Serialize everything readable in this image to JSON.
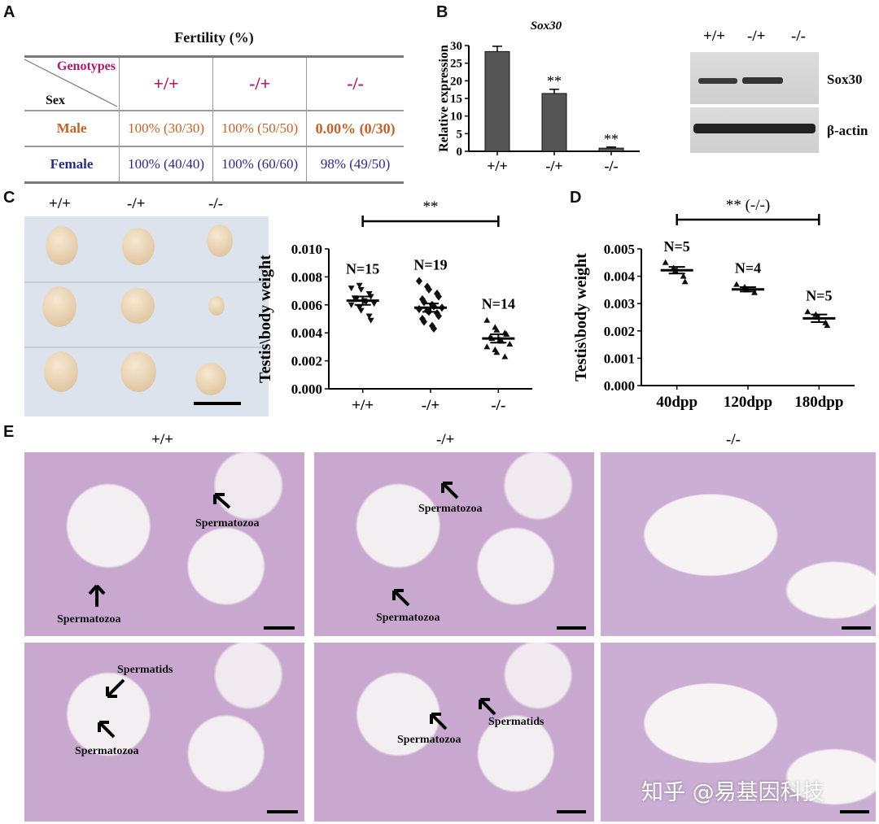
{
  "panels": {
    "a": "A",
    "b": "B",
    "c": "C",
    "d": "D",
    "e": "E"
  },
  "table": {
    "title": "Fertility (%)",
    "corner_top": "Genotypes",
    "corner_bottom": "Sex",
    "genotypes": [
      "+/+",
      "-/+",
      "-/-"
    ],
    "rows": [
      {
        "sex": "Male",
        "values": [
          "100% (30/30)",
          "100% (50/50)",
          "0.00% (0/30)"
        ]
      },
      {
        "sex": "Female",
        "values": [
          "100% (40/40)",
          "100% (60/60)",
          "98% (49/50)"
        ]
      }
    ],
    "colors": {
      "genotype": "#b01868",
      "male": "#c0622a",
      "female": "#2b2b80"
    }
  },
  "western": {
    "lanes": [
      "+/+",
      "-/+",
      "-/-"
    ],
    "band1": "Sox30",
    "band2": "β-actin"
  },
  "photo_c": {
    "columns": [
      "+/+",
      "-/+",
      "-/-"
    ]
  },
  "histology": {
    "columns": [
      "+/+",
      "-/+",
      "-/-"
    ],
    "labels": {
      "r1c1a": "Spermatozoa",
      "r1c1b": "Spermatozoa",
      "r1c2a": "Spermatozoa",
      "r1c2b": "Spermatozoa",
      "r2c1a": "Spermatids",
      "r2c1b": "Spermatozoa",
      "r2c2a": "Spermatozoa",
      "r2c2b": "Spermatids"
    }
  },
  "watermark": "知乎 @易基因科技",
  "chart_data": [
    {
      "type": "bar",
      "title": "Sox30",
      "ylabel": "Relative expression",
      "categories": [
        "+/+",
        "-/+",
        "-/-"
      ],
      "values": [
        28.3,
        16.4,
        0.9
      ],
      "errors": [
        1.5,
        1.2,
        0.3
      ],
      "significance": [
        "",
        "**",
        "**"
      ],
      "ylim": [
        0,
        30
      ],
      "yticks": [
        0,
        5,
        10,
        15,
        20,
        25,
        30
      ]
    },
    {
      "type": "scatter",
      "ylabel": "Testis\\body weight",
      "categories": [
        "+/+",
        "-/+",
        "-/-"
      ],
      "ylim": [
        0,
        0.01
      ],
      "yticks": [
        "0.000",
        "0.002",
        "0.004",
        "0.006",
        "0.008",
        "0.010"
      ],
      "n_labels": [
        "N=15",
        "N=19",
        "N=14"
      ],
      "means": [
        0.0063,
        0.0058,
        0.0036
      ],
      "sem": [
        0.0003,
        0.0003,
        0.0003
      ],
      "significance": "**",
      "points": [
        [
          0.0072,
          0.0074,
          0.0071,
          0.0068,
          0.0066,
          0.0065,
          0.0064,
          0.0063,
          0.0062,
          0.0061,
          0.006,
          0.0058,
          0.0056,
          0.0052,
          0.0049
        ],
        [
          0.0077,
          0.0073,
          0.0071,
          0.0068,
          0.0066,
          0.0064,
          0.0062,
          0.006,
          0.0059,
          0.0058,
          0.0057,
          0.0056,
          0.0055,
          0.0054,
          0.0052,
          0.005,
          0.0048,
          0.0045,
          0.0043
        ],
        [
          0.0049,
          0.0044,
          0.0042,
          0.004,
          0.0039,
          0.0037,
          0.0036,
          0.0035,
          0.0034,
          0.0032,
          0.003,
          0.0028,
          0.0026,
          0.0023
        ]
      ]
    },
    {
      "type": "scatter",
      "ylabel": "Testis\\body weight",
      "categories": [
        "40dpp",
        "120dpp",
        "180dpp"
      ],
      "ylim": [
        0,
        0.005
      ],
      "yticks": [
        "0.000",
        "0.001",
        "0.002",
        "0.003",
        "0.004",
        "0.005"
      ],
      "n_labels": [
        "N=5",
        "N=4",
        "N=5"
      ],
      "means": [
        0.00422,
        0.00352,
        0.00246
      ],
      "sem": [
        0.00012,
        8e-05,
        0.00014
      ],
      "significance": "** (-/-)",
      "points": [
        [
          0.0045,
          0.0043,
          0.0042,
          0.004,
          0.0038
        ],
        [
          0.0037,
          0.0036,
          0.0035,
          0.0034
        ],
        [
          0.0027,
          0.0026,
          0.0025,
          0.0023,
          0.0022
        ]
      ]
    }
  ]
}
